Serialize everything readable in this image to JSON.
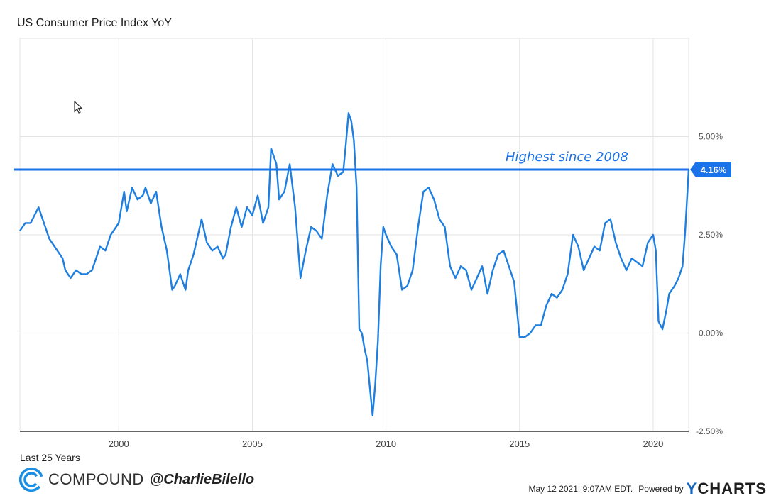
{
  "title": "US Consumer Price Index YoY",
  "range_label": "Last 25 Years",
  "brand": {
    "name": "COMPOUND",
    "handle": "@CharlieBilello",
    "icon": "compound-logo-icon"
  },
  "footer": {
    "timestamp": "May 12 2021, 9:07AM EDT.",
    "powered_by": "Powered by",
    "logo_text": "CHARTS",
    "logo_accent": "Y"
  },
  "colors": {
    "series": "#1e7fe0",
    "hline": "#1a73e8",
    "grid": "#e3e3e3",
    "label_bg": "#1a73e8"
  },
  "chart_data": {
    "type": "line",
    "title": "US Consumer Price Index YoY",
    "xlabel": "",
    "ylabel": "",
    "xlim": [
      1996.3,
      2021.33
    ],
    "ylim": [
      -2.5,
      7.5
    ],
    "x_ticks": [
      "2000",
      "2005",
      "2010",
      "2015",
      "2020"
    ],
    "y_ticks": [
      "5.00%",
      "2.50%",
      "0.00%",
      "-2.50%"
    ],
    "y_tick_values": [
      5.0,
      2.5,
      0.0,
      -2.5
    ],
    "x_tick_values": [
      2000,
      2005,
      2010,
      2015,
      2020
    ],
    "grid": true,
    "series": [
      {
        "x": [
          1996.3,
          1996.5,
          1996.7,
          1997.0,
          1997.2,
          1997.4,
          1997.6,
          1997.9,
          1998.0,
          1998.2,
          1998.4,
          1998.6,
          1998.8,
          1999.0,
          1999.1,
          1999.3,
          1999.5,
          1999.7,
          1999.9,
          2000.0,
          2000.2,
          2000.3,
          2000.5,
          2000.7,
          2000.9,
          2001.0,
          2001.2,
          2001.4,
          2001.6,
          2001.8,
          2002.0,
          2002.1,
          2002.3,
          2002.5,
          2002.6,
          2002.8,
          2003.0,
          2003.1,
          2003.3,
          2003.5,
          2003.7,
          2003.9,
          2004.0,
          2004.2,
          2004.4,
          2004.6,
          2004.8,
          2005.0,
          2005.2,
          2005.4,
          2005.6,
          2005.7,
          2005.9,
          2006.0,
          2006.2,
          2006.4,
          2006.6,
          2006.8,
          2007.0,
          2007.2,
          2007.4,
          2007.6,
          2007.8,
          2008.0,
          2008.2,
          2008.4,
          2008.5,
          2008.6,
          2008.7,
          2008.8,
          2008.9,
          2009.0,
          2009.1,
          2009.2,
          2009.3,
          2009.4,
          2009.5,
          2009.6,
          2009.7,
          2009.8,
          2009.9,
          2010.0,
          2010.2,
          2010.4,
          2010.6,
          2010.8,
          2011.0,
          2011.2,
          2011.4,
          2011.6,
          2011.8,
          2012.0,
          2012.2,
          2012.4,
          2012.6,
          2012.8,
          2013.0,
          2013.2,
          2013.4,
          2013.6,
          2013.8,
          2014.0,
          2014.2,
          2014.4,
          2014.6,
          2014.8,
          2015.0,
          2015.2,
          2015.4,
          2015.6,
          2015.8,
          2016.0,
          2016.2,
          2016.4,
          2016.6,
          2016.8,
          2017.0,
          2017.2,
          2017.4,
          2017.6,
          2017.8,
          2018.0,
          2018.2,
          2018.4,
          2018.6,
          2018.8,
          2019.0,
          2019.2,
          2019.4,
          2019.6,
          2019.8,
          2020.0,
          2020.1,
          2020.2,
          2020.35,
          2020.5,
          2020.6,
          2020.8,
          2020.95,
          2021.1,
          2021.2,
          2021.33
        ],
        "values": [
          2.6,
          2.8,
          2.8,
          3.2,
          2.8,
          2.4,
          2.2,
          1.9,
          1.6,
          1.4,
          1.6,
          1.5,
          1.5,
          1.6,
          1.8,
          2.2,
          2.1,
          2.5,
          2.7,
          2.8,
          3.6,
          3.1,
          3.7,
          3.4,
          3.5,
          3.7,
          3.3,
          3.6,
          2.7,
          2.1,
          1.1,
          1.2,
          1.5,
          1.1,
          1.6,
          2.0,
          2.6,
          2.9,
          2.3,
          2.1,
          2.2,
          1.9,
          2.0,
          2.7,
          3.2,
          2.7,
          3.2,
          3.0,
          3.5,
          2.8,
          3.2,
          4.7,
          4.3,
          3.4,
          3.6,
          4.3,
          3.2,
          1.4,
          2.1,
          2.7,
          2.6,
          2.4,
          3.5,
          4.3,
          4.0,
          4.1,
          4.8,
          5.6,
          5.4,
          4.9,
          3.7,
          0.1,
          0.0,
          -0.4,
          -0.7,
          -1.4,
          -2.1,
          -1.3,
          -0.2,
          1.7,
          2.7,
          2.5,
          2.2,
          2.0,
          1.1,
          1.2,
          1.6,
          2.7,
          3.6,
          3.7,
          3.4,
          2.9,
          2.7,
          1.7,
          1.4,
          1.7,
          1.6,
          1.1,
          1.4,
          1.7,
          1.0,
          1.6,
          2.0,
          2.1,
          1.7,
          1.3,
          -0.1,
          -0.1,
          0.0,
          0.2,
          0.2,
          0.7,
          1.0,
          0.9,
          1.1,
          1.5,
          2.5,
          2.2,
          1.6,
          1.9,
          2.2,
          2.1,
          2.8,
          2.9,
          2.3,
          1.9,
          1.6,
          1.9,
          1.8,
          1.7,
          2.3,
          2.5,
          2.1,
          0.3,
          0.1,
          0.6,
          1.0,
          1.2,
          1.4,
          1.7,
          2.6,
          4.16
        ]
      }
    ],
    "annotations": [
      {
        "text": "Highest since 2008",
        "y": 4.16
      },
      {
        "text": "4.16%",
        "y": 4.16
      }
    ]
  }
}
